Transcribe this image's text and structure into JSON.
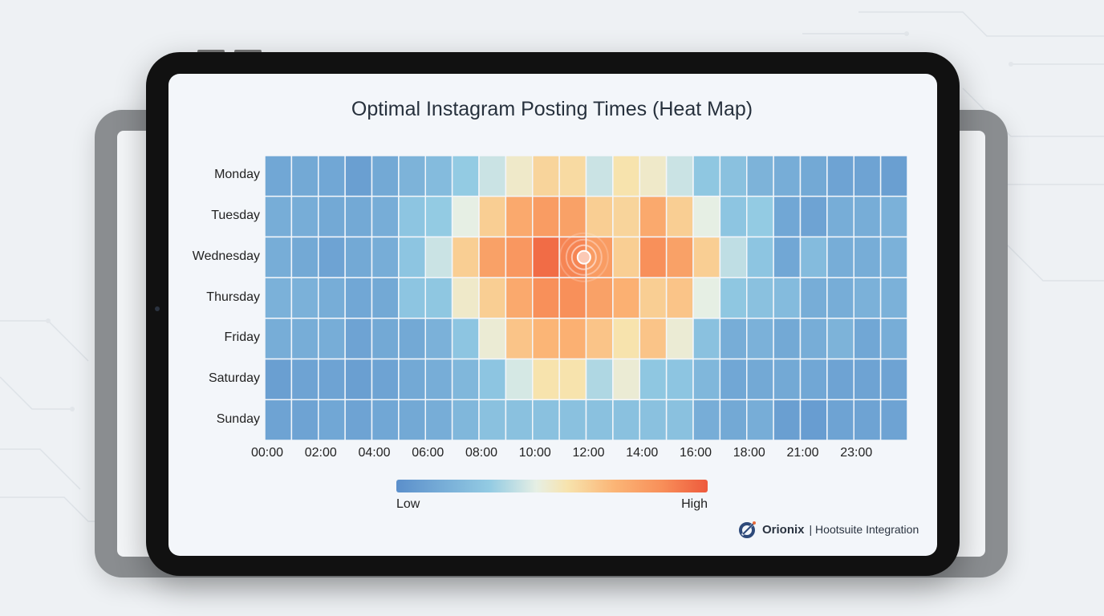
{
  "chart_data": {
    "type": "heatmap",
    "title": "Optimal Instagram Posting Times (Heat Map)",
    "rows": [
      "Monday",
      "Tuesday",
      "Wednesday",
      "Thursday",
      "Friday",
      "Saturday",
      "Sunday"
    ],
    "x_tick_labels": [
      "00:00",
      "02:00",
      "04:00",
      "06:00",
      "08:00",
      "10:00",
      "12:00",
      "14:00",
      "16:00",
      "18:00",
      "21:00",
      "23:00"
    ],
    "columns_count_hours": 24,
    "values": [
      [
        0.12,
        0.13,
        0.12,
        0.08,
        0.13,
        0.18,
        0.22,
        0.3,
        0.4,
        0.5,
        0.6,
        0.58,
        0.4,
        0.55,
        0.5,
        0.4,
        0.28,
        0.25,
        0.18,
        0.15,
        0.13,
        0.1,
        0.1,
        0.08
      ],
      [
        0.15,
        0.15,
        0.13,
        0.13,
        0.15,
        0.27,
        0.3,
        0.45,
        0.62,
        0.75,
        0.8,
        0.78,
        0.62,
        0.6,
        0.75,
        0.62,
        0.45,
        0.27,
        0.3,
        0.12,
        0.1,
        0.15,
        0.15,
        0.17
      ],
      [
        0.15,
        0.13,
        0.1,
        0.13,
        0.15,
        0.27,
        0.4,
        0.62,
        0.78,
        0.82,
        0.95,
        0.88,
        0.8,
        0.62,
        0.85,
        0.78,
        0.62,
        0.38,
        0.27,
        0.12,
        0.22,
        0.15,
        0.15,
        0.17
      ],
      [
        0.17,
        0.17,
        0.15,
        0.12,
        0.13,
        0.27,
        0.28,
        0.5,
        0.62,
        0.75,
        0.85,
        0.85,
        0.78,
        0.72,
        0.62,
        0.65,
        0.45,
        0.28,
        0.25,
        0.22,
        0.15,
        0.15,
        0.17,
        0.17
      ],
      [
        0.15,
        0.15,
        0.15,
        0.1,
        0.13,
        0.13,
        0.17,
        0.27,
        0.48,
        0.65,
        0.7,
        0.72,
        0.65,
        0.55,
        0.65,
        0.48,
        0.25,
        0.15,
        0.17,
        0.13,
        0.15,
        0.18,
        0.12,
        0.15
      ],
      [
        0.08,
        0.1,
        0.1,
        0.08,
        0.1,
        0.13,
        0.15,
        0.2,
        0.27,
        0.42,
        0.55,
        0.55,
        0.35,
        0.48,
        0.28,
        0.27,
        0.2,
        0.12,
        0.13,
        0.13,
        0.12,
        0.1,
        0.1,
        0.1
      ],
      [
        0.1,
        0.1,
        0.12,
        0.1,
        0.12,
        0.13,
        0.15,
        0.2,
        0.25,
        0.25,
        0.25,
        0.25,
        0.25,
        0.25,
        0.25,
        0.25,
        0.15,
        0.13,
        0.15,
        0.08,
        0.07,
        0.1,
        0.1,
        0.1
      ]
    ],
    "highlight": {
      "row": "Wednesday",
      "column_hour": 11
    },
    "colorscale": [
      "#5b8fcb",
      "#93cbe3",
      "#e6efe4",
      "#f7e3ad",
      "#fbb576",
      "#f8905a",
      "#ee5a3c"
    ],
    "legend": {
      "low_label": "Low",
      "high_label": "High",
      "placement": "bottom"
    },
    "grid": false
  },
  "branding": {
    "name": "Orionix",
    "suffix": "| Hootsuite Integration"
  }
}
